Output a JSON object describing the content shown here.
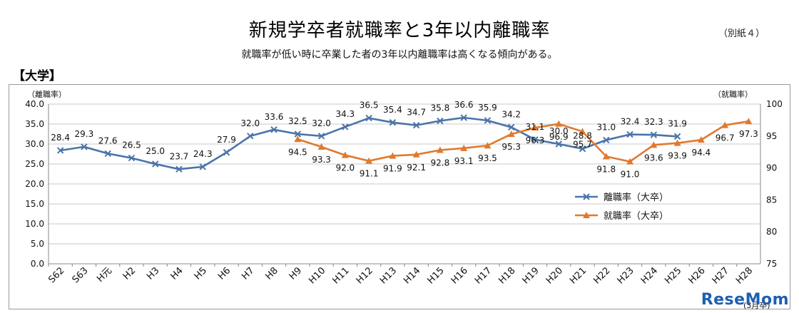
{
  "header": {
    "title": "新規学卒者就職率と3年以内離職率",
    "annex": "（別紙４）",
    "subtitle": "就職率が低い時に卒業した者の3年以内離職率は高くなる傾向がある。",
    "section": "【大学】"
  },
  "watermark": "ReseMom",
  "chart_data": {
    "type": "line",
    "categories": [
      "S62",
      "S63",
      "H元",
      "H2",
      "H3",
      "H4",
      "H5",
      "H6",
      "H7",
      "H8",
      "H9",
      "H10",
      "H11",
      "H12",
      "H13",
      "H14",
      "H15",
      "H16",
      "H17",
      "H18",
      "H19",
      "H20",
      "H21",
      "H22",
      "H23",
      "H24",
      "H25",
      "H26",
      "H27",
      "H28"
    ],
    "x_footnote": "(3月卒)",
    "left_axis": {
      "label": "（離職率）",
      "ylim": [
        0,
        40
      ],
      "ticks": [
        0.0,
        5.0,
        10.0,
        15.0,
        20.0,
        25.0,
        30.0,
        35.0,
        40.0
      ]
    },
    "right_axis": {
      "label": "（就職率）",
      "ylim": [
        75,
        100
      ],
      "ticks": [
        75,
        80,
        85,
        90,
        95,
        100
      ]
    },
    "grid": true,
    "legend_position": "right-center",
    "series": [
      {
        "name": "離職率（大卒）",
        "axis": "left",
        "marker": "x",
        "color": "#4a74a8",
        "values": [
          28.4,
          29.3,
          27.6,
          26.5,
          25.0,
          23.7,
          24.3,
          27.9,
          32.0,
          33.6,
          32.5,
          32.0,
          34.3,
          36.5,
          35.4,
          34.7,
          35.8,
          36.6,
          35.9,
          34.2,
          31.1,
          30.0,
          28.8,
          31.0,
          32.4,
          32.3,
          31.9,
          null,
          null,
          null
        ]
      },
      {
        "name": "就職率（大卒）",
        "axis": "right",
        "marker": "triangle",
        "color": "#e07a2e",
        "values": [
          null,
          null,
          null,
          null,
          null,
          null,
          null,
          null,
          null,
          null,
          94.5,
          93.3,
          92.0,
          91.1,
          91.9,
          92.1,
          92.8,
          93.1,
          93.5,
          95.3,
          96.3,
          96.9,
          95.7,
          91.8,
          91.0,
          93.6,
          93.9,
          94.4,
          96.7,
          97.3
        ]
      }
    ]
  }
}
